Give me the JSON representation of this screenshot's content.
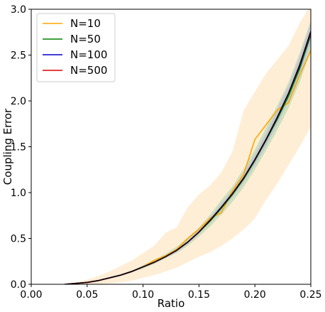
{
  "chart_data": {
    "type": "line",
    "title": "",
    "xlabel": "Ratio",
    "ylabel": "Coupling Error",
    "xlim": [
      0.0,
      0.25
    ],
    "ylim": [
      0.0,
      3.0
    ],
    "xticks": [
      "0.00",
      "0.05",
      "0.10",
      "0.15",
      "0.20",
      "0.25"
    ],
    "yticks": [
      "0.0",
      "0.5",
      "1.0",
      "1.5",
      "2.0",
      "2.5",
      "3.0"
    ],
    "grid": false,
    "legend_position": "top-left",
    "x": [
      0.03,
      0.04,
      0.05,
      0.06,
      0.07,
      0.08,
      0.09,
      0.1,
      0.11,
      0.12,
      0.13,
      0.14,
      0.15,
      0.16,
      0.17,
      0.18,
      0.19,
      0.2,
      0.21,
      0.22,
      0.23,
      0.24,
      0.25
    ],
    "series": [
      {
        "name": "N=10",
        "color": "#ffa500",
        "band_color": "#ffe8c8",
        "values": [
          0.0,
          0.01,
          0.02,
          0.04,
          0.07,
          0.1,
          0.14,
          0.19,
          0.26,
          0.31,
          0.38,
          0.5,
          0.6,
          0.72,
          0.78,
          1.02,
          1.2,
          1.58,
          1.74,
          1.9,
          1.98,
          2.28,
          2.55
        ],
        "lower": [
          0.0,
          0.0,
          0.0,
          0.0,
          0.01,
          0.02,
          0.04,
          0.07,
          0.1,
          0.14,
          0.18,
          0.24,
          0.3,
          0.35,
          0.42,
          0.5,
          0.6,
          0.72,
          0.92,
          1.1,
          1.3,
          1.5,
          1.72
        ],
        "upper": [
          0.0,
          0.02,
          0.05,
          0.09,
          0.14,
          0.2,
          0.26,
          0.34,
          0.42,
          0.56,
          0.62,
          0.84,
          0.98,
          1.08,
          1.22,
          1.45,
          1.9,
          2.1,
          2.3,
          2.45,
          2.6,
          2.85,
          3.05
        ]
      },
      {
        "name": "N=50",
        "color": "#008000",
        "band_color": "#a8d6a8",
        "values": [
          0.0,
          0.01,
          0.02,
          0.04,
          0.07,
          0.1,
          0.14,
          0.19,
          0.24,
          0.3,
          0.37,
          0.46,
          0.57,
          0.69,
          0.83,
          0.98,
          1.15,
          1.35,
          1.57,
          1.8,
          2.05,
          2.35,
          2.72
        ],
        "lower": [
          0.0,
          0.01,
          0.02,
          0.04,
          0.06,
          0.09,
          0.13,
          0.17,
          0.22,
          0.28,
          0.34,
          0.42,
          0.52,
          0.63,
          0.76,
          0.9,
          1.06,
          1.25,
          1.46,
          1.68,
          1.92,
          2.2,
          2.55
        ],
        "upper": [
          0.0,
          0.01,
          0.03,
          0.05,
          0.08,
          0.11,
          0.15,
          0.21,
          0.27,
          0.33,
          0.41,
          0.51,
          0.62,
          0.76,
          0.92,
          1.07,
          1.26,
          1.47,
          1.71,
          1.95,
          2.2,
          2.52,
          2.88
        ]
      },
      {
        "name": "N=100",
        "color": "#0000cc",
        "band_color": "#b4b4e6",
        "values": [
          0.0,
          0.01,
          0.02,
          0.04,
          0.07,
          0.1,
          0.14,
          0.19,
          0.24,
          0.3,
          0.37,
          0.46,
          0.57,
          0.7,
          0.84,
          0.99,
          1.16,
          1.36,
          1.58,
          1.82,
          2.08,
          2.38,
          2.74
        ],
        "lower": [
          0.0,
          0.01,
          0.02,
          0.04,
          0.06,
          0.09,
          0.13,
          0.18,
          0.23,
          0.29,
          0.35,
          0.44,
          0.55,
          0.67,
          0.8,
          0.95,
          1.11,
          1.3,
          1.51,
          1.74,
          2.0,
          2.28,
          2.63
        ],
        "upper": [
          0.0,
          0.01,
          0.03,
          0.05,
          0.08,
          0.11,
          0.15,
          0.2,
          0.25,
          0.32,
          0.39,
          0.48,
          0.59,
          0.73,
          0.88,
          1.03,
          1.21,
          1.42,
          1.65,
          1.9,
          2.16,
          2.48,
          2.85
        ]
      },
      {
        "name": "N=500",
        "color": "#dd0000",
        "band_color": "#f0b0b0",
        "values": [
          0.0,
          0.01,
          0.02,
          0.04,
          0.07,
          0.1,
          0.14,
          0.19,
          0.24,
          0.3,
          0.37,
          0.46,
          0.57,
          0.7,
          0.84,
          0.99,
          1.16,
          1.36,
          1.58,
          1.82,
          2.08,
          2.39,
          2.75
        ],
        "lower": [
          0.0,
          0.01,
          0.02,
          0.04,
          0.07,
          0.1,
          0.14,
          0.19,
          0.24,
          0.3,
          0.37,
          0.45,
          0.56,
          0.69,
          0.83,
          0.98,
          1.15,
          1.35,
          1.56,
          1.8,
          2.06,
          2.36,
          2.72
        ],
        "upper": [
          0.0,
          0.01,
          0.02,
          0.04,
          0.07,
          0.1,
          0.14,
          0.19,
          0.24,
          0.3,
          0.37,
          0.47,
          0.58,
          0.71,
          0.85,
          1.0,
          1.17,
          1.37,
          1.6,
          1.84,
          2.1,
          2.42,
          2.78
        ]
      }
    ],
    "reference_line": {
      "color": "#000000",
      "values": [
        0.0,
        0.01,
        0.02,
        0.04,
        0.07,
        0.1,
        0.14,
        0.19,
        0.24,
        0.3,
        0.37,
        0.46,
        0.57,
        0.7,
        0.84,
        0.99,
        1.16,
        1.36,
        1.58,
        1.82,
        2.08,
        2.39,
        2.76
      ]
    }
  }
}
